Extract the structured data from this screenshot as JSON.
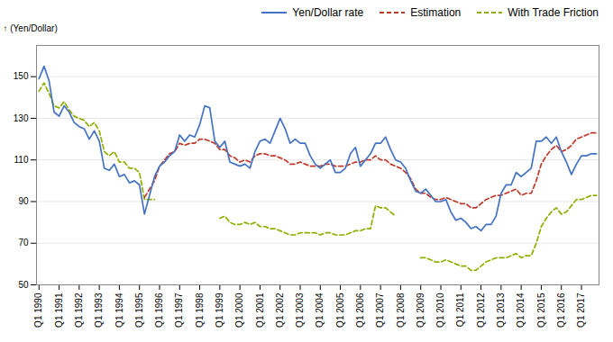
{
  "chart_data": {
    "type": "line",
    "ylabel": "(Yen/Dollar)",
    "categories": [
      "Q1 1990",
      null,
      null,
      null,
      "Q1 1991",
      null,
      null,
      null,
      "Q1 1992",
      null,
      null,
      null,
      "Q1 1993",
      null,
      null,
      null,
      "Q1 1994",
      null,
      null,
      null,
      "Q1 1995",
      null,
      null,
      null,
      "Q1 1996",
      null,
      null,
      null,
      "Q1 1997",
      null,
      null,
      null,
      "Q1 1998",
      null,
      null,
      null,
      "Q1 1999",
      null,
      null,
      null,
      "Q1 2000",
      null,
      null,
      null,
      "Q1 2001",
      null,
      null,
      null,
      "Q1 2002",
      null,
      null,
      null,
      "Q1 2003",
      null,
      null,
      null,
      "Q1 2004",
      null,
      null,
      null,
      "Q1 2005",
      null,
      null,
      null,
      "Q1 2006",
      null,
      null,
      null,
      "Q1 2007",
      null,
      null,
      null,
      "Q1 2008",
      null,
      null,
      null,
      "Q1 2009",
      null,
      null,
      null,
      "Q1 2010",
      null,
      null,
      null,
      "Q1 2011",
      null,
      null,
      null,
      "Q1 2012",
      null,
      null,
      null,
      "Q1 2013",
      null,
      null,
      null,
      "Q1 2014",
      null,
      null,
      null,
      "Q1 2015",
      null,
      null,
      null,
      "Q1 2016",
      null,
      null,
      null,
      "Q1 2017",
      null,
      null,
      null
    ],
    "series": [
      {
        "name": "Yen/Dollar rate",
        "color": "#4472c4",
        "line_style": "solid",
        "values": [
          149,
          155,
          148,
          133,
          131,
          136,
          133,
          128,
          126,
          125,
          120,
          124,
          119,
          106,
          105,
          108,
          102,
          103,
          99,
          100,
          98,
          84,
          93,
          102,
          107,
          109,
          112,
          114,
          122,
          119,
          122,
          121,
          127,
          136,
          135,
          119,
          116,
          119,
          109,
          108,
          107,
          108,
          106,
          114,
          119,
          120,
          118,
          124,
          130,
          125,
          118,
          120,
          118,
          118,
          112,
          108,
          106,
          108,
          110,
          104,
          104,
          106,
          113,
          116,
          107,
          110,
          113,
          118,
          118,
          121,
          115,
          110,
          109,
          106,
          100,
          95,
          94,
          96,
          93,
          90,
          90,
          91,
          85,
          81,
          82,
          80,
          77,
          78,
          76,
          79,
          79,
          83,
          94,
          98,
          98,
          104,
          102,
          104,
          106,
          119,
          119,
          121,
          118,
          121,
          114,
          109,
          103,
          108,
          112,
          112,
          113,
          113
        ]
      },
      {
        "name": "Estimation",
        "color": "#c0392b",
        "line_style": "dashed",
        "values": [
          null,
          null,
          null,
          null,
          null,
          null,
          null,
          null,
          null,
          null,
          null,
          null,
          null,
          null,
          null,
          null,
          null,
          null,
          null,
          null,
          null,
          92,
          96,
          100,
          107,
          110,
          113,
          114,
          118,
          117,
          118,
          118,
          120,
          120,
          119,
          118,
          115,
          115,
          112,
          111,
          109,
          110,
          109,
          112,
          113,
          113,
          112,
          112,
          111,
          110,
          108,
          108,
          109,
          108,
          107,
          107,
          107,
          108,
          108,
          107,
          107,
          107,
          108,
          109,
          109,
          110,
          110,
          112,
          110,
          110,
          108,
          107,
          106,
          104,
          101,
          96,
          94,
          94,
          92,
          91,
          91,
          92,
          91,
          90,
          89,
          89,
          87,
          87,
          89,
          91,
          92,
          93,
          93,
          94,
          95,
          96,
          93,
          94,
          94,
          100,
          108,
          112,
          115,
          117,
          114,
          115,
          117,
          120,
          121,
          122,
          123,
          123
        ]
      },
      {
        "name": "With Trade Friction",
        "color": "#8db000",
        "line_style": "dashed",
        "values": [
          143,
          147,
          142,
          136,
          135,
          138,
          134,
          131,
          130,
          129,
          126,
          128,
          124,
          114,
          112,
          114,
          109,
          109,
          106,
          106,
          104,
          91,
          91,
          91,
          null,
          null,
          null,
          null,
          null,
          null,
          null,
          null,
          null,
          null,
          null,
          null,
          82,
          83,
          80,
          79,
          79,
          80,
          79,
          80,
          78,
          78,
          77,
          77,
          76,
          75,
          74,
          74,
          75,
          75,
          75,
          75,
          74,
          75,
          75,
          74,
          74,
          74,
          75,
          76,
          76,
          77,
          77,
          88,
          87,
          87,
          85,
          83,
          null,
          null,
          null,
          null,
          63,
          63,
          62,
          61,
          61,
          62,
          61,
          60,
          59,
          59,
          57,
          57,
          59,
          61,
          62,
          63,
          63,
          63,
          64,
          65,
          63,
          64,
          64,
          70,
          78,
          82,
          85,
          87,
          84,
          85,
          88,
          91,
          91,
          92,
          93,
          93
        ]
      }
    ],
    "ylim": [
      50,
      165
    ],
    "yticks": [
      50,
      70,
      90,
      110,
      130,
      150
    ],
    "grid": true,
    "legend": "upper right"
  }
}
